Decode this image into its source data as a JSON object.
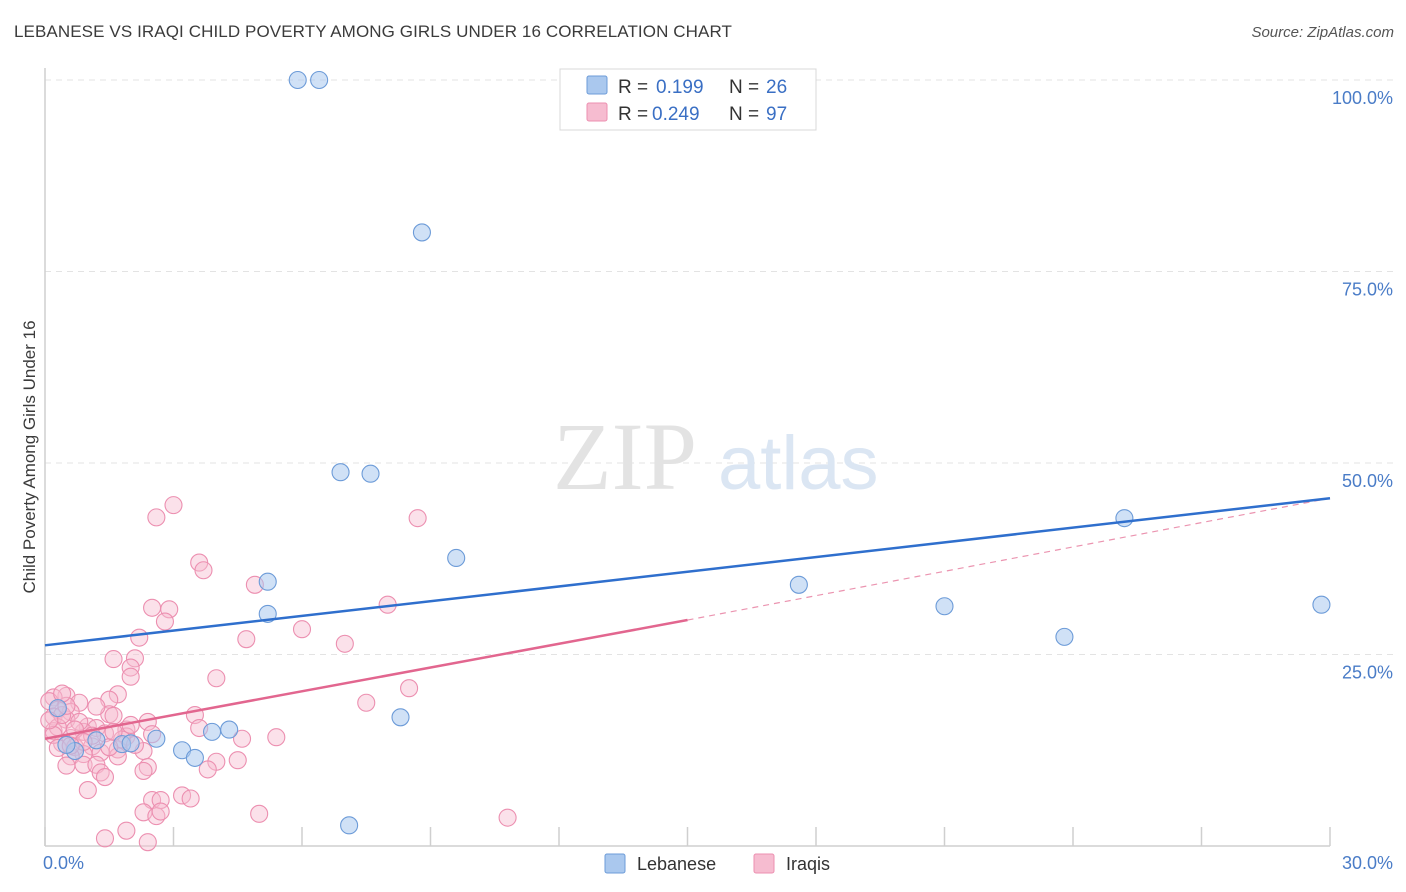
{
  "title": "LEBANESE VS IRAQI CHILD POVERTY AMONG GIRLS UNDER 16 CORRELATION CHART",
  "source": "Source: ZipAtlas.com",
  "watermark": {
    "zip": "ZIP",
    "atlas": "atlas"
  },
  "colors": {
    "blue_fill": "#aac8ee",
    "blue_stroke": "#6c9bd8",
    "blue_line": "#2f6fcd",
    "pink_fill": "#f6bcd0",
    "pink_stroke": "#ec8fb0",
    "pink_line": "#e2668f",
    "grid": "#e3e3e3",
    "axis_text": "#4a7cc7"
  },
  "legend": {
    "rows": [
      {
        "r_label": "R =",
        "r_value": "0.199",
        "n_label": "N =",
        "n_value": "26"
      },
      {
        "r_label": "R =",
        "r_value": "0.249",
        "n_label": "N =",
        "n_value": "97"
      }
    ]
  },
  "bottom_legend": [
    "Lebanese",
    "Iraqis"
  ],
  "chart_data": {
    "type": "scatter",
    "title": "LEBANESE VS IRAQI CHILD POVERTY AMONG GIRLS UNDER 16 CORRELATION CHART",
    "xlabel": "",
    "ylabel": "Child Poverty Among Girls Under 16",
    "xlim": [
      0,
      30
    ],
    "ylim": [
      0,
      100
    ],
    "x_tick_labels": [
      "0.0%",
      "30.0%"
    ],
    "y_ticks": [
      25,
      50,
      75,
      100
    ],
    "y_tick_labels": [
      "25.0%",
      "50.0%",
      "75.0%",
      "100.0%"
    ],
    "series": [
      {
        "name": "Lebanese",
        "r": 0.199,
        "n": 26,
        "trend": {
          "x": [
            0,
            30
          ],
          "y": [
            26.2,
            45.4
          ]
        },
        "points": [
          [
            5.9,
            100
          ],
          [
            6.4,
            100
          ],
          [
            8.8,
            80.1
          ],
          [
            6.9,
            48.8
          ],
          [
            7.6,
            48.6
          ],
          [
            9.6,
            37.6
          ],
          [
            5.2,
            34.5
          ],
          [
            5.2,
            30.3
          ],
          [
            8.3,
            16.8
          ],
          [
            7.1,
            2.7
          ],
          [
            25.2,
            42.8
          ],
          [
            17.6,
            34.1
          ],
          [
            21.0,
            31.3
          ],
          [
            23.8,
            27.3
          ],
          [
            29.8,
            31.5
          ],
          [
            2.6,
            14.0
          ],
          [
            3.2,
            12.5
          ],
          [
            3.5,
            11.5
          ],
          [
            3.9,
            14.9
          ],
          [
            4.3,
            15.2
          ],
          [
            1.2,
            13.8
          ],
          [
            0.7,
            12.4
          ],
          [
            0.5,
            13.2
          ],
          [
            1.8,
            13.3
          ],
          [
            2.0,
            13.4
          ],
          [
            0.3,
            18.0
          ]
        ]
      },
      {
        "name": "Iraqis",
        "r": 0.249,
        "n": 97,
        "trend": {
          "x": [
            0,
            15
          ],
          "y": [
            14.0,
            29.5
          ]
        },
        "trend_extended": {
          "x": [
            15,
            30
          ],
          "y": [
            29.5,
            45.4
          ]
        },
        "points": [
          [
            3.0,
            44.5
          ],
          [
            2.6,
            42.9
          ],
          [
            8.7,
            42.8
          ],
          [
            3.6,
            37.0
          ],
          [
            3.7,
            36.0
          ],
          [
            4.9,
            34.1
          ],
          [
            2.5,
            31.1
          ],
          [
            2.9,
            30.9
          ],
          [
            8.0,
            31.5
          ],
          [
            2.8,
            29.3
          ],
          [
            6.0,
            28.3
          ],
          [
            2.2,
            27.2
          ],
          [
            4.7,
            27.0
          ],
          [
            7.0,
            26.4
          ],
          [
            2.1,
            24.5
          ],
          [
            1.6,
            24.4
          ],
          [
            2.0,
            23.3
          ],
          [
            2.0,
            22.1
          ],
          [
            4.0,
            21.9
          ],
          [
            8.5,
            20.6
          ],
          [
            1.7,
            19.8
          ],
          [
            0.5,
            19.6
          ],
          [
            0.2,
            19.4
          ],
          [
            0.1,
            18.9
          ],
          [
            1.5,
            19.1
          ],
          [
            0.8,
            18.7
          ],
          [
            7.5,
            18.7
          ],
          [
            0.3,
            17.8
          ],
          [
            0.6,
            17.5
          ],
          [
            1.5,
            17.2
          ],
          [
            1.6,
            17.0
          ],
          [
            3.5,
            17.1
          ],
          [
            0.2,
            16.9
          ],
          [
            0.5,
            16.5
          ],
          [
            2.4,
            16.2
          ],
          [
            1.0,
            15.6
          ],
          [
            1.2,
            15.4
          ],
          [
            1.9,
            15.2
          ],
          [
            3.6,
            15.4
          ],
          [
            0.2,
            15.0
          ],
          [
            0.9,
            14.9
          ],
          [
            1.4,
            14.7
          ],
          [
            2.5,
            14.6
          ],
          [
            5.4,
            14.2
          ],
          [
            4.6,
            14.0
          ],
          [
            1.9,
            14.3
          ],
          [
            0.6,
            14.1
          ],
          [
            0.4,
            13.4
          ],
          [
            0.7,
            12.9
          ],
          [
            1.1,
            13.0
          ],
          [
            1.7,
            12.6
          ],
          [
            2.3,
            12.4
          ],
          [
            1.3,
            12.2
          ],
          [
            0.9,
            12.0
          ],
          [
            0.6,
            11.7
          ],
          [
            1.7,
            11.7
          ],
          [
            4.0,
            11.0
          ],
          [
            4.5,
            11.2
          ],
          [
            0.9,
            10.6
          ],
          [
            1.2,
            10.6
          ],
          [
            0.5,
            10.5
          ],
          [
            2.4,
            10.3
          ],
          [
            3.8,
            10.0
          ],
          [
            2.3,
            9.8
          ],
          [
            1.3,
            9.6
          ],
          [
            1.4,
            9.0
          ],
          [
            1.0,
            7.3
          ],
          [
            3.2,
            6.6
          ],
          [
            3.4,
            6.2
          ],
          [
            2.5,
            6.0
          ],
          [
            2.7,
            6.0
          ],
          [
            2.3,
            4.4
          ],
          [
            2.6,
            3.9
          ],
          [
            2.7,
            4.5
          ],
          [
            5.0,
            4.2
          ],
          [
            10.8,
            3.7
          ],
          [
            1.9,
            2.0
          ],
          [
            1.4,
            1.0
          ],
          [
            2.4,
            0.5
          ],
          [
            0.3,
            15.5
          ],
          [
            0.8,
            16.2
          ],
          [
            0.2,
            14.5
          ],
          [
            0.4,
            17.1
          ],
          [
            0.5,
            18.3
          ],
          [
            1.1,
            14.4
          ],
          [
            1.8,
            13.9
          ],
          [
            2.1,
            13.2
          ],
          [
            0.7,
            15.2
          ],
          [
            0.3,
            12.8
          ],
          [
            1.5,
            12.9
          ],
          [
            0.9,
            13.6
          ],
          [
            1.6,
            14.9
          ],
          [
            2.0,
            15.8
          ],
          [
            0.1,
            16.4
          ],
          [
            0.6,
            13.1
          ],
          [
            1.2,
            18.2
          ],
          [
            0.4,
            19.9
          ]
        ]
      }
    ]
  }
}
